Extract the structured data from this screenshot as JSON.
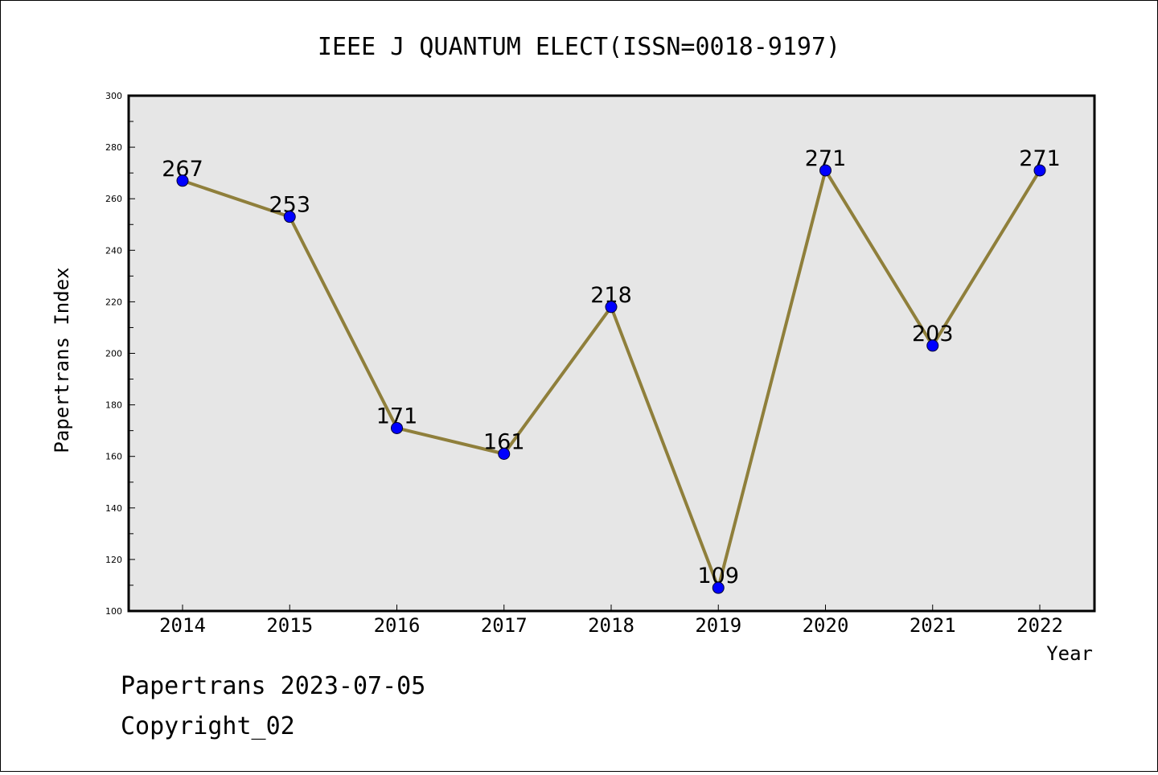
{
  "chart_data": {
    "type": "line",
    "title": "IEEE J QUANTUM ELECT(ISSN=0018-9197)",
    "xlabel": "Year",
    "ylabel": "Papertrans Index",
    "x": [
      "2014",
      "2015",
      "2016",
      "2017",
      "2018",
      "2019",
      "2020",
      "2021",
      "2022"
    ],
    "series": [
      {
        "values": [
          267,
          253,
          171,
          161,
          218,
          109,
          271,
          203,
          271
        ],
        "line_color": "#8f7f3b",
        "marker_color": "#0000ff"
      }
    ],
    "ylim": [
      100,
      300
    ],
    "yticks": [
      100,
      120,
      140,
      160,
      180,
      200,
      220,
      240,
      260,
      280,
      300
    ],
    "plot_background": "#e6e6e6",
    "grid": false,
    "data_labels": true
  },
  "footer": {
    "line1": "Papertrans 2023-07-05",
    "line2": "Copyright_02"
  }
}
